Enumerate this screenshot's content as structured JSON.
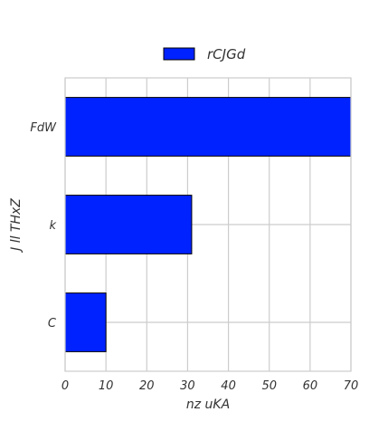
{
  "colors": {
    "bar": "#0022ff",
    "grid": "#cccccc",
    "text": "#333333"
  },
  "chart_data": {
    "type": "bar",
    "orientation": "horizontal",
    "categories": [
      "FdW",
      "k",
      "C"
    ],
    "series": [
      {
        "name": "rCJGd",
        "values": [
          70,
          31,
          10
        ]
      }
    ],
    "xlabel": "nz uKA",
    "ylabel": "J ll  THxZ",
    "xlim": [
      0,
      70
    ],
    "xticks": [
      "0",
      "10",
      "20",
      "30",
      "40",
      "50",
      "60",
      "70"
    ],
    "grid": true,
    "legend_position": "top-center"
  }
}
